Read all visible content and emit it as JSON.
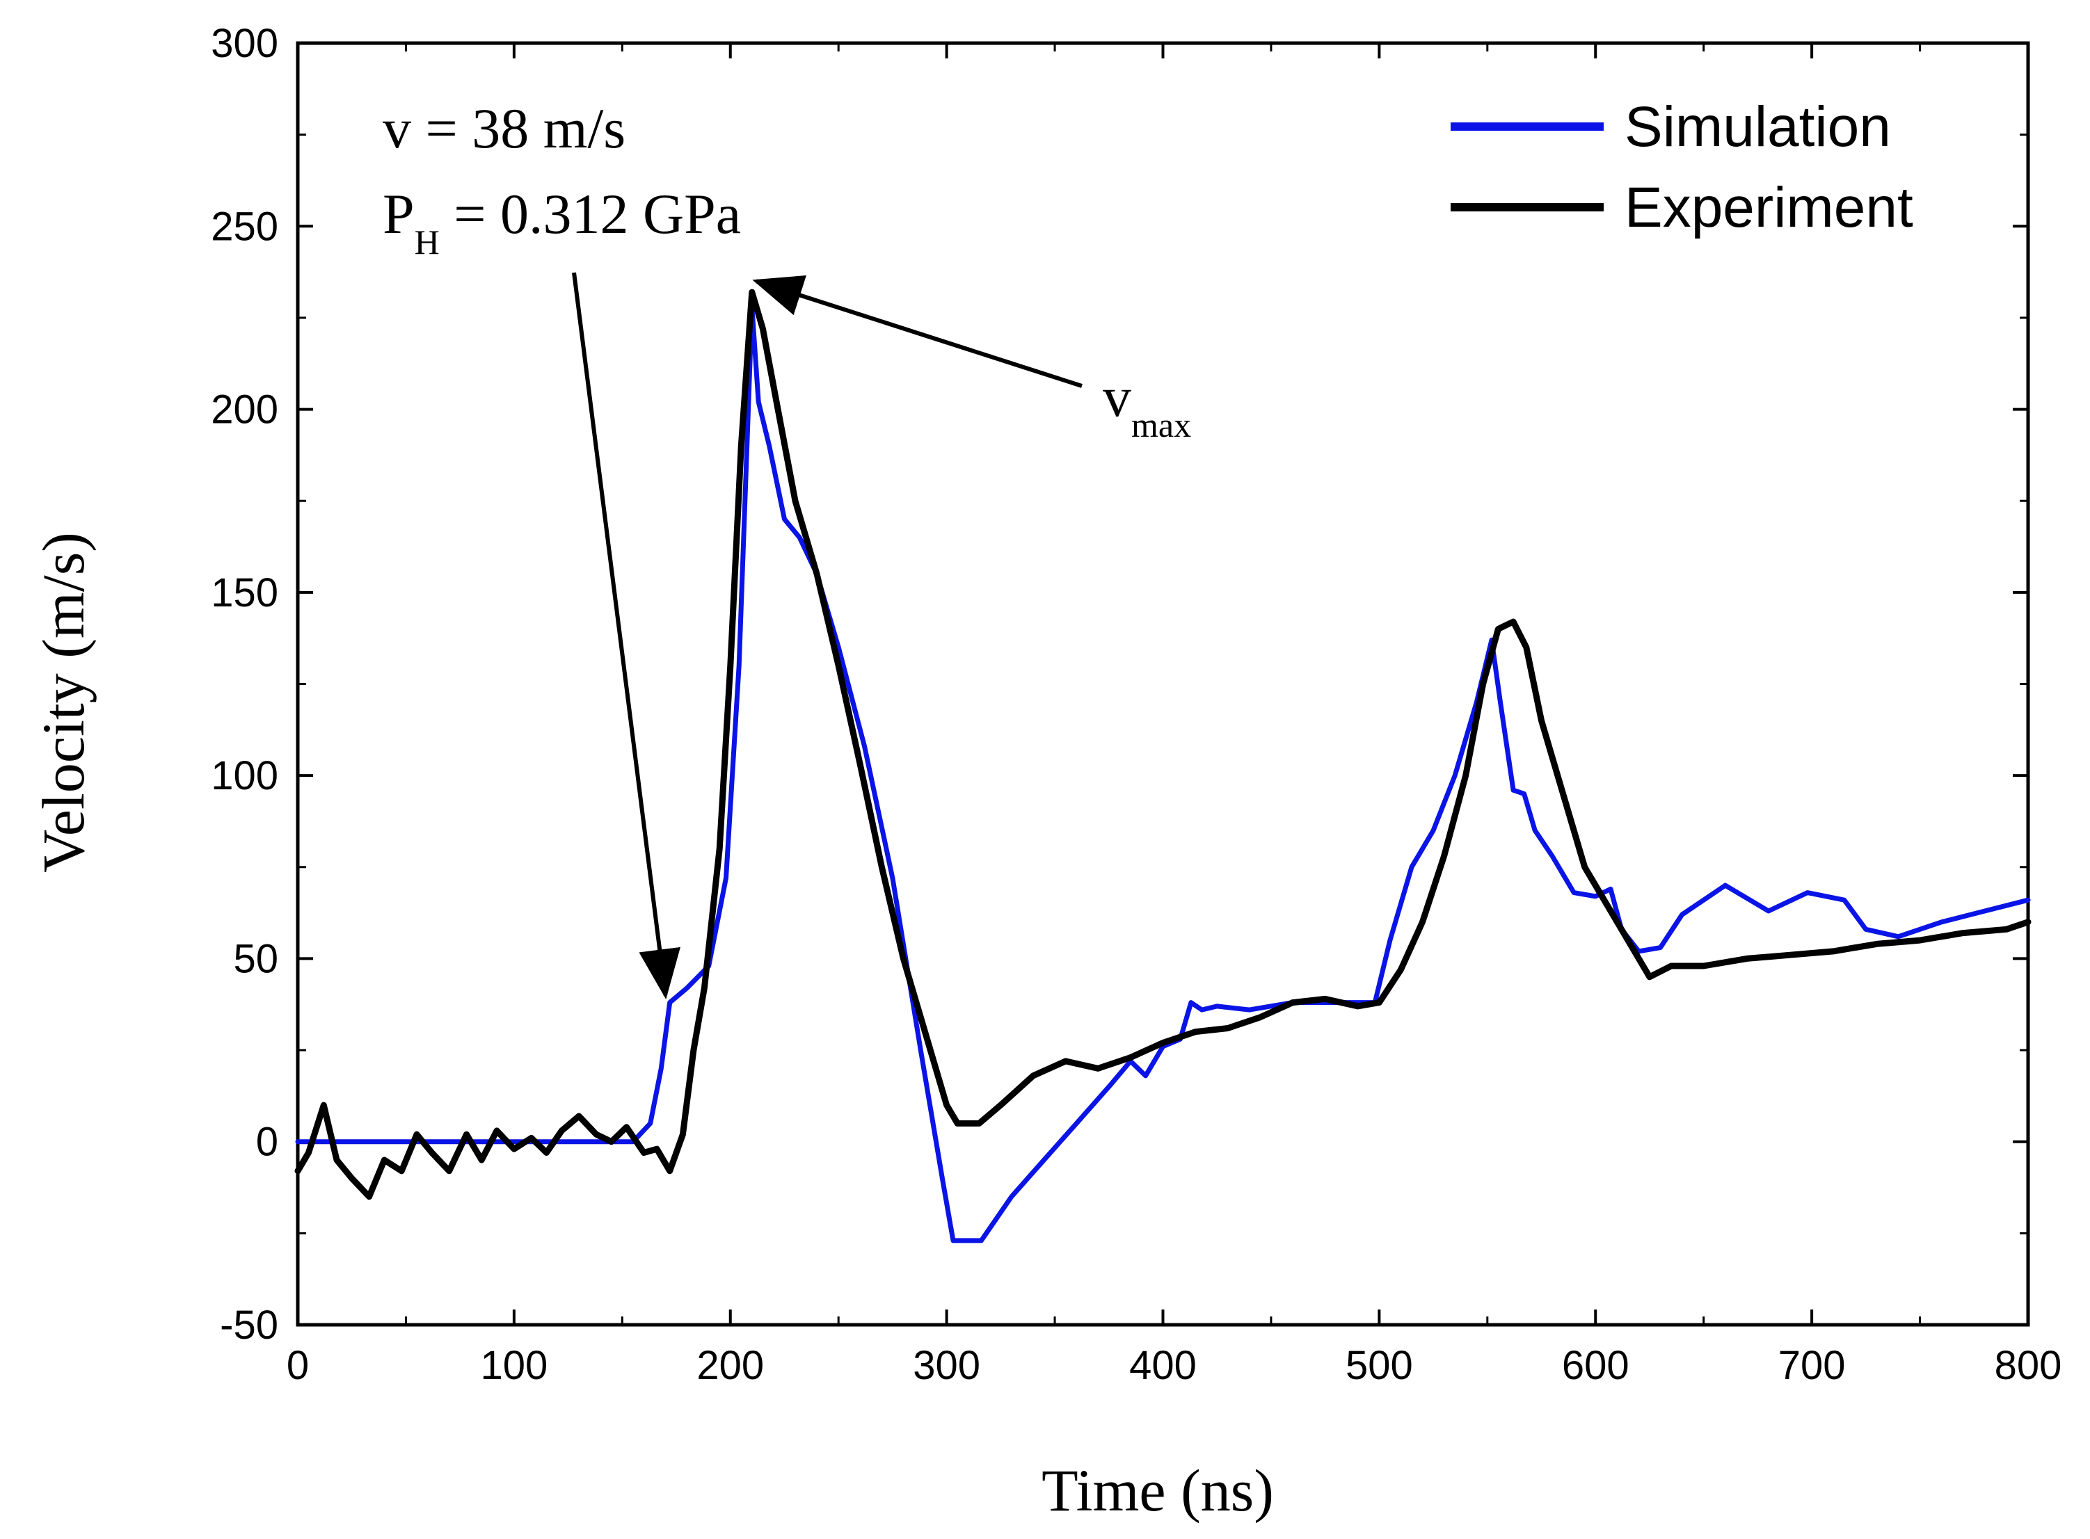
{
  "chart_data": {
    "type": "line",
    "xlabel": "Time (ns)",
    "ylabel": "Velocity (m/s)",
    "xlim": [
      0,
      800
    ],
    "ylim": [
      -50,
      300
    ],
    "xticks": [
      0,
      100,
      200,
      300,
      400,
      500,
      600,
      700,
      800
    ],
    "yticks": [
      -50,
      0,
      50,
      100,
      150,
      200,
      250,
      300
    ],
    "xtick_labels": [
      "0",
      "100",
      "200",
      "300",
      "400",
      "500",
      "600",
      "700",
      "800"
    ],
    "ytick_labels": [
      "-50",
      "0",
      "50",
      "100",
      "150",
      "200",
      "250",
      "300"
    ],
    "grid": false,
    "legend_position": "top-right",
    "series": [
      {
        "name": "Simulation",
        "color": "#0a14e6",
        "x": [
          0,
          155,
          163,
          168,
          172,
          180,
          190,
          198,
          204,
          208,
          210,
          213,
          218,
          225,
          232,
          240,
          250,
          262,
          275,
          288,
          298,
          303,
          316,
          330,
          345,
          360,
          375,
          385,
          392,
          400,
          408,
          413,
          418,
          425,
          440,
          460,
          480,
          498,
          505,
          515,
          525,
          535,
          545,
          552,
          556,
          562,
          567,
          572,
          580,
          590,
          600,
          607,
          612,
          620,
          630,
          640,
          660,
          680,
          698,
          715,
          725,
          740,
          760,
          780,
          800
        ],
        "y": [
          0,
          0,
          5,
          20,
          38,
          42,
          48,
          72,
          130,
          195,
          228,
          202,
          190,
          170,
          165,
          155,
          135,
          108,
          72,
          25,
          -10,
          -27,
          -27,
          -15,
          -5,
          5,
          15,
          22,
          18,
          26,
          28,
          38,
          36,
          37,
          36,
          38,
          38,
          38,
          55,
          75,
          85,
          100,
          120,
          137,
          120,
          96,
          95,
          85,
          78,
          68,
          67,
          69,
          58,
          52,
          53,
          62,
          70,
          63,
          68,
          66,
          58,
          56,
          60,
          63,
          66
        ]
      },
      {
        "name": "Experiment",
        "color": "#000000",
        "x": [
          0,
          5,
          12,
          18,
          25,
          33,
          40,
          48,
          55,
          62,
          70,
          78,
          85,
          92,
          100,
          108,
          115,
          122,
          130,
          138,
          145,
          152,
          160,
          166,
          172,
          178,
          183,
          188,
          195,
          200,
          205,
          210,
          215,
          222,
          230,
          240,
          250,
          260,
          270,
          280,
          290,
          300,
          305,
          315,
          325,
          340,
          355,
          370,
          385,
          400,
          415,
          430,
          445,
          460,
          475,
          490,
          500,
          510,
          520,
          530,
          540,
          548,
          555,
          562,
          568,
          575,
          585,
          595,
          605,
          615,
          625,
          635,
          650,
          670,
          690,
          710,
          730,
          750,
          770,
          790,
          800
        ],
        "y": [
          -8,
          -3,
          10,
          -5,
          -10,
          -15,
          -5,
          -8,
          2,
          -3,
          -8,
          2,
          -5,
          3,
          -2,
          1,
          -3,
          3,
          7,
          2,
          0,
          4,
          -3,
          -2,
          -8,
          2,
          25,
          42,
          80,
          130,
          190,
          232,
          222,
          200,
          175,
          155,
          130,
          103,
          75,
          50,
          30,
          10,
          5,
          5,
          10,
          18,
          22,
          20,
          23,
          27,
          30,
          31,
          34,
          38,
          39,
          37,
          38,
          47,
          60,
          78,
          100,
          125,
          140,
          142,
          135,
          115,
          95,
          75,
          65,
          55,
          45,
          48,
          48,
          50,
          51,
          52,
          54,
          55,
          57,
          58,
          60
        ]
      }
    ],
    "annotations": {
      "velocity_text": "v = 38 m/s",
      "pressure_main": "P",
      "pressure_sub": "H",
      "pressure_rest": " = 0.312 GPa",
      "vmax_main": "v",
      "vmax_sub": "max",
      "pressure_arrow_target": [
        170,
        40
      ],
      "vmax_arrow_target": [
        212,
        235
      ]
    }
  }
}
